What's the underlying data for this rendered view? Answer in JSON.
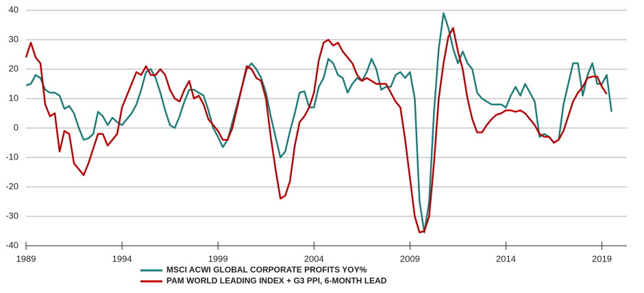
{
  "chart_data": {
    "type": "line",
    "x": [
      1989,
      1989.25,
      1989.5,
      1989.75,
      1990,
      1990.25,
      1990.5,
      1990.75,
      1991,
      1991.25,
      1991.5,
      1991.75,
      1992,
      1992.25,
      1992.5,
      1992.75,
      1993,
      1993.25,
      1993.5,
      1993.75,
      1994,
      1994.25,
      1994.5,
      1994.75,
      1995,
      1995.25,
      1995.5,
      1995.75,
      1996,
      1996.25,
      1996.5,
      1996.75,
      1997,
      1997.25,
      1997.5,
      1997.75,
      1998,
      1998.25,
      1998.5,
      1998.75,
      1999,
      1999.25,
      1999.5,
      1999.75,
      2000,
      2000.25,
      2000.5,
      2000.75,
      2001,
      2001.25,
      2001.5,
      2001.75,
      2002,
      2002.25,
      2002.5,
      2002.75,
      2003,
      2003.25,
      2003.5,
      2003.75,
      2004,
      2004.25,
      2004.5,
      2004.75,
      2005,
      2005.25,
      2005.5,
      2005.75,
      2006,
      2006.25,
      2006.5,
      2006.75,
      2007,
      2007.25,
      2007.5,
      2007.75,
      2008,
      2008.25,
      2008.5,
      2008.75,
      2009,
      2009.25,
      2009.5,
      2009.75,
      2010,
      2010.25,
      2010.5,
      2010.75,
      2011,
      2011.25,
      2011.5,
      2011.75,
      2012,
      2012.25,
      2012.5,
      2012.75,
      2013,
      2013.25,
      2013.5,
      2013.75,
      2014,
      2014.25,
      2014.5,
      2014.75,
      2015,
      2015.25,
      2015.5,
      2015.75,
      2016,
      2016.25,
      2016.5,
      2016.75,
      2017,
      2017.25,
      2017.5,
      2017.75,
      2018,
      2018.25,
      2018.5,
      2018.75,
      2019,
      2019.25,
      2019.5
    ],
    "series": [
      {
        "name": "MSCI ACWI GLOBAL CORPORATE PROFITS YOY%",
        "color": "#1a7f7a",
        "values": [
          14.5,
          15,
          18,
          17,
          13,
          12,
          12,
          11,
          6.5,
          7.5,
          5,
          0,
          -4,
          -3.5,
          -2,
          5.5,
          4,
          1,
          3.5,
          2,
          1,
          3,
          5,
          8,
          13,
          19,
          20,
          17,
          12,
          6,
          1,
          0,
          4,
          9,
          13,
          13,
          12,
          11,
          6,
          0,
          -3,
          -6.5,
          -4,
          2,
          8,
          14,
          20,
          22,
          20,
          17,
          12,
          4,
          -3,
          -10,
          -8,
          -1,
          5,
          12,
          12.5,
          7,
          7,
          14,
          17,
          23.5,
          22,
          18,
          17,
          12,
          15,
          17,
          16,
          19,
          23.5,
          20,
          13,
          14,
          14,
          18,
          19,
          17,
          19,
          10,
          -25,
          -35.5,
          -25,
          5,
          27,
          39,
          34,
          27,
          22,
          26,
          22,
          20,
          12,
          10,
          9,
          8,
          8,
          8,
          7,
          11,
          14,
          11,
          15,
          12,
          9,
          -3,
          -2,
          -3,
          -5,
          -4,
          8,
          15,
          22,
          22,
          11,
          18,
          22,
          15,
          15,
          18,
          5.5
        ]
      },
      {
        "name": "PAM WORLD LEADING INDEX + G3 PPI, 6-MONTH LEAD",
        "color": "#c00000",
        "values": [
          24,
          29,
          24,
          22,
          8,
          4,
          5,
          -8,
          -1,
          -2,
          -12,
          -14,
          -16,
          -12,
          -7,
          -2,
          -2,
          -6,
          -4,
          -2,
          7,
          11,
          15,
          19,
          18,
          21,
          18,
          18,
          20,
          18,
          13,
          10,
          9,
          13,
          16,
          10,
          11,
          8,
          3,
          1,
          -1,
          -4,
          -4,
          0,
          7,
          14,
          21,
          20,
          17,
          16,
          10,
          -3,
          -14,
          -24,
          -23,
          -18,
          -6,
          2,
          4,
          7,
          12,
          23,
          29,
          30,
          28,
          29,
          26,
          24,
          22,
          18,
          16,
          17,
          16,
          15,
          15,
          15,
          12,
          9,
          7,
          -4,
          -17,
          -30,
          -35.5,
          -35,
          -30,
          -12,
          10,
          22,
          31,
          34,
          26,
          20,
          10,
          3,
          -1.5,
          -1.5,
          1,
          3,
          4.5,
          5,
          6,
          6,
          5.5,
          6,
          5,
          3,
          1,
          -2,
          -3,
          -3,
          -5,
          -4,
          -1,
          4,
          9,
          12,
          14,
          17,
          17.5,
          17.5,
          14,
          11.5,
          null
        ]
      }
    ],
    "xlim": [
      1989,
      2020.3
    ],
    "xticks": [
      1989,
      1994,
      1999,
      2004,
      2009,
      2014,
      2019
    ],
    "ylim": [
      -40,
      40
    ],
    "yticks": [
      -40,
      -30,
      -20,
      -10,
      0,
      10,
      20,
      30,
      40
    ],
    "grid": true,
    "legend": "bottom"
  }
}
